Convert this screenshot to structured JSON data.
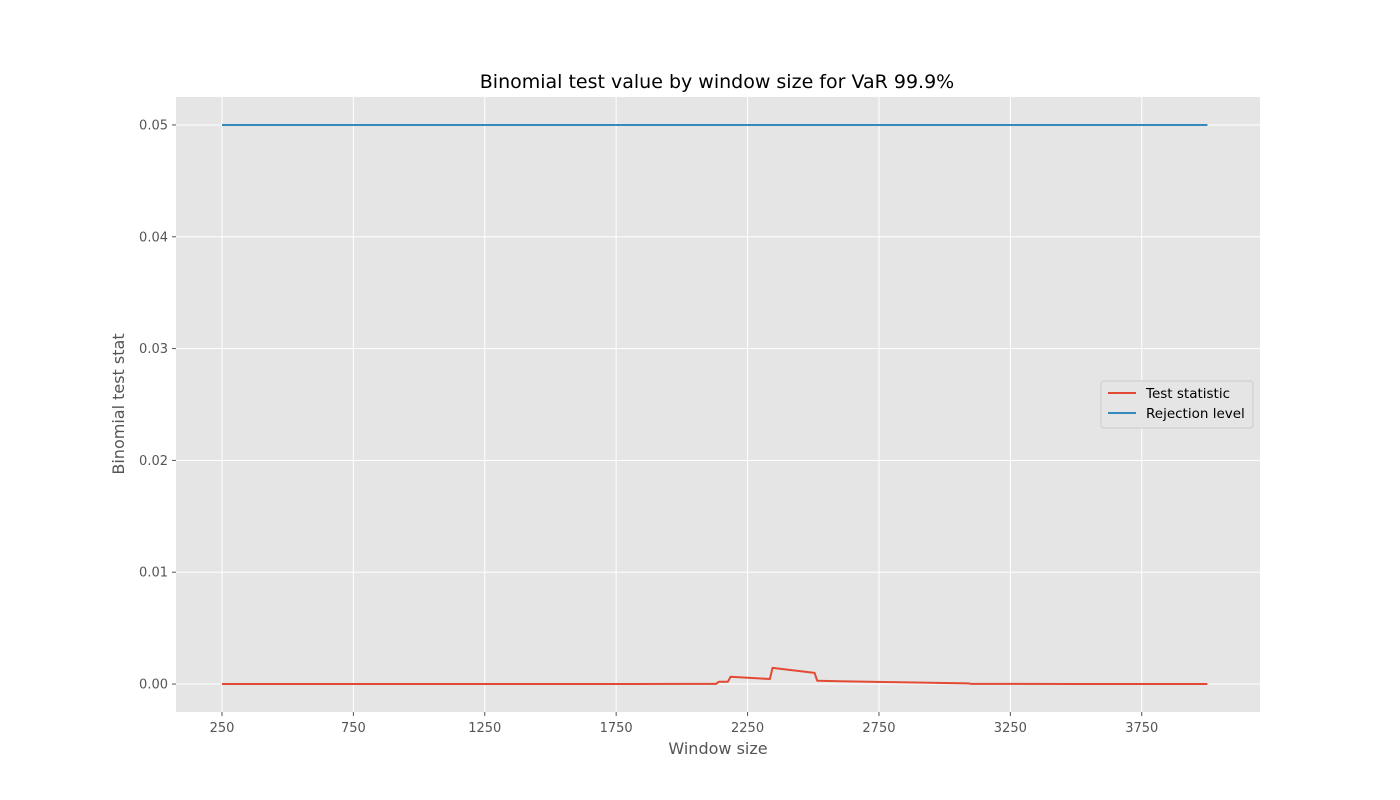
{
  "chart_data": {
    "type": "line",
    "title": "Binomial test value by window size for VaR 99.9%",
    "xlabel": "Window size",
    "ylabel": "Binomial test stat",
    "xlim": [
      75,
      4200
    ],
    "ylim": [
      -0.0025,
      0.0525
    ],
    "xticks": [
      250,
      750,
      1250,
      1750,
      2250,
      2750,
      3250,
      3750
    ],
    "xtick_labels": [
      "250",
      "750",
      "1250",
      "1750",
      "2250",
      "2750",
      "3250",
      "3750"
    ],
    "yticks": [
      0.0,
      0.01,
      0.02,
      0.03,
      0.04,
      0.05
    ],
    "ytick_labels": [
      "0.00",
      "0.01",
      "0.02",
      "0.03",
      "0.04",
      "0.05"
    ],
    "grid": true,
    "legend_position": "center-right",
    "series": [
      {
        "name": "Test statistic",
        "color": "#e24a33",
        "x": [
          250,
          1800,
          2000,
          2130,
          2140,
          2160,
          2175,
          2185,
          2335,
          2345,
          2505,
          2515,
          2600,
          2800,
          3000,
          3090,
          3100,
          3300,
          3500,
          3700,
          4000
        ],
        "y": [
          0.0,
          0.0,
          2e-05,
          1e-05,
          0.0002,
          0.0002,
          0.0002,
          0.00065,
          0.00045,
          0.00145,
          0.001,
          0.0003,
          0.00025,
          0.00017,
          9e-05,
          6e-05,
          2e-05,
          1e-05,
          0.0,
          0.0,
          0.0
        ]
      },
      {
        "name": "Rejection level",
        "color": "#348abd",
        "x": [
          250,
          4000
        ],
        "y": [
          0.05,
          0.05
        ]
      }
    ]
  }
}
